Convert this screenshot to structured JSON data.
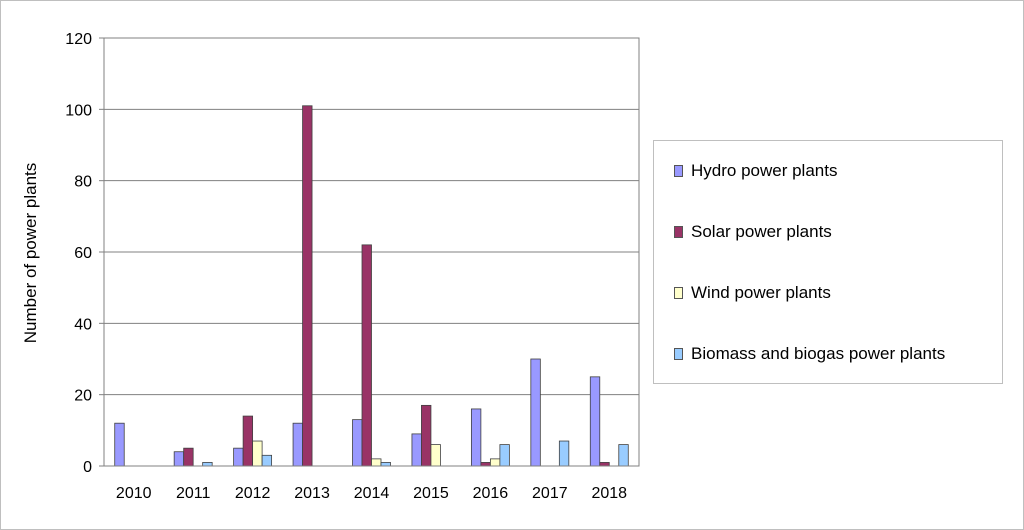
{
  "chart_data": {
    "type": "bar",
    "title": "",
    "xlabel": "",
    "ylabel": "Number of power plants",
    "ylim": [
      0,
      120
    ],
    "yticks": [
      0,
      20,
      40,
      60,
      80,
      100,
      120
    ],
    "grid": true,
    "legend_position": "right",
    "categories": [
      "2010",
      "2011",
      "2012",
      "2013",
      "2014",
      "2015",
      "2016",
      "2017",
      "2018"
    ],
    "series": [
      {
        "name": "Hydro power plants",
        "color": "#9999ff",
        "values": [
          12,
          4,
          5,
          12,
          13,
          9,
          16,
          30,
          25
        ]
      },
      {
        "name": "Solar power plants",
        "color": "#993366",
        "values": [
          0,
          5,
          14,
          101,
          62,
          17,
          1,
          0,
          1
        ]
      },
      {
        "name": "Wind power plants",
        "color": "#ffffcc",
        "values": [
          0,
          0,
          7,
          0,
          2,
          6,
          2,
          0,
          0
        ]
      },
      {
        "name": "Biomass and biogas power plants",
        "color": "#99ccff",
        "values": [
          0,
          1,
          3,
          0,
          1,
          0,
          6,
          7,
          6
        ]
      }
    ]
  }
}
